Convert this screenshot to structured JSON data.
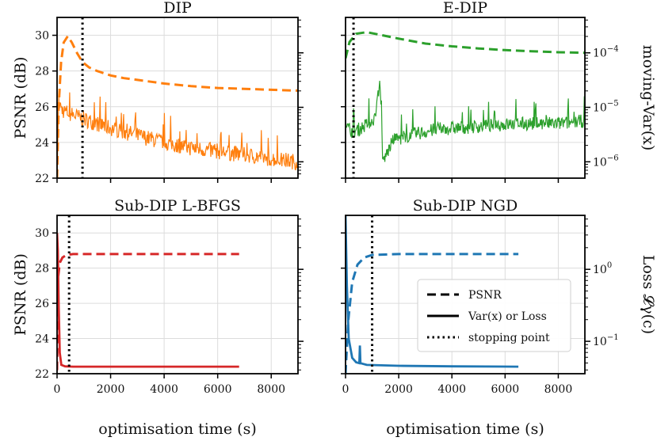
{
  "chart_data": [
    {
      "type": "line",
      "title": "DIP",
      "ylabel_left": "PSNR (dB)",
      "ylabel_right": "",
      "xlim": [
        0,
        9000
      ],
      "ylim_left": [
        22,
        31
      ],
      "yticks_left": [
        "22",
        "24",
        "26",
        "28",
        "30"
      ],
      "xticks": [],
      "yticks_right": [],
      "right_log_range": [
        -6.3,
        -3.35
      ],
      "stopping_point": 950,
      "series": [
        {
          "role": "psnr",
          "style": "dashed",
          "color": "#ff7f0e",
          "axis": "left",
          "points": [
            [
              0,
              22.0
            ],
            [
              60,
              26.0
            ],
            [
              150,
              28.5
            ],
            [
              250,
              29.6
            ],
            [
              400,
              29.95
            ],
            [
              550,
              29.6
            ],
            [
              750,
              29.0
            ],
            [
              950,
              28.5
            ],
            [
              1200,
              28.2
            ],
            [
              1500,
              28.0
            ],
            [
              2000,
              27.75
            ],
            [
              2500,
              27.6
            ],
            [
              3000,
              27.5
            ],
            [
              3500,
              27.4
            ],
            [
              4000,
              27.3
            ],
            [
              5000,
              27.15
            ],
            [
              6000,
              27.05
            ],
            [
              7000,
              27.0
            ],
            [
              8000,
              26.95
            ],
            [
              9000,
              26.9
            ]
          ]
        },
        {
          "role": "variance",
          "style": "solid",
          "color": "#ff7f0e",
          "axis": "left",
          "points": [
            [
              0,
              22.0
            ],
            [
              60,
              26.2
            ],
            [
              200,
              25.8
            ],
            [
              500,
              25.6
            ],
            [
              1000,
              25.3
            ],
            [
              2000,
              24.8
            ],
            [
              3000,
              24.4
            ],
            [
              4000,
              24.0
            ],
            [
              5000,
              23.7
            ],
            [
              6000,
              23.5
            ],
            [
              7000,
              23.3
            ],
            [
              8000,
              23.1
            ],
            [
              9000,
              22.9
            ]
          ],
          "noise": 0.9
        }
      ]
    },
    {
      "type": "line",
      "title": "E-DIP",
      "ylabel_left": "",
      "ylabel_right": "moving-Var(x)",
      "xlim": [
        0,
        9000
      ],
      "ylim_left": [
        22,
        31
      ],
      "yticks_left": [],
      "xticks": [],
      "yticks_right": [
        {
          "label": "10",
          "exp": "−4",
          "value": -4
        },
        {
          "label": "10",
          "exp": "−5",
          "value": -5
        },
        {
          "label": "10",
          "exp": "−6",
          "value": -6
        }
      ],
      "right_log_range": [
        -6.3,
        -3.35
      ],
      "stopping_point": 300,
      "series": [
        {
          "role": "psnr",
          "style": "dashed",
          "color": "#2ca02c",
          "axis": "right_log",
          "points": [
            [
              0,
              -4.1
            ],
            [
              150,
              -3.8
            ],
            [
              400,
              -3.65
            ],
            [
              800,
              -3.62
            ],
            [
              1200,
              -3.66
            ],
            [
              2000,
              -3.74
            ],
            [
              3000,
              -3.83
            ],
            [
              4000,
              -3.88
            ],
            [
              5000,
              -3.92
            ],
            [
              6000,
              -3.95
            ],
            [
              7000,
              -3.97
            ],
            [
              8000,
              -3.99
            ],
            [
              9000,
              -4.0
            ]
          ]
        },
        {
          "role": "variance",
          "style": "solid",
          "color": "#2ca02c",
          "axis": "right_log",
          "points": [
            [
              0,
              -5.35
            ],
            [
              300,
              -5.45
            ],
            [
              700,
              -5.35
            ],
            [
              1100,
              -5.2
            ],
            [
              1300,
              -4.5
            ],
            [
              1400,
              -6.0
            ],
            [
              1800,
              -5.6
            ],
            [
              2500,
              -5.5
            ],
            [
              3500,
              -5.4
            ],
            [
              5000,
              -5.35
            ],
            [
              6500,
              -5.3
            ],
            [
              8000,
              -5.3
            ],
            [
              9000,
              -5.25
            ]
          ],
          "noise": 0.25
        }
      ]
    },
    {
      "type": "line",
      "title": "Sub-DIP L-BFGS",
      "ylabel_left": "PSNR (dB)",
      "ylabel_right": "",
      "xlim": [
        0,
        9000
      ],
      "ylim_left": [
        22,
        31
      ],
      "yticks_left": [
        "22",
        "24",
        "26",
        "28",
        "30"
      ],
      "xticks": [
        "0",
        "2000",
        "4000",
        "6000",
        "8000"
      ],
      "yticks_right": [],
      "right_log_range": [
        -1.45,
        0.75
      ],
      "xlabel": "optimisation time (s)",
      "stopping_point": 450,
      "series": [
        {
          "role": "psnr",
          "style": "dashed",
          "color": "#d62728",
          "axis": "left",
          "points": [
            [
              0,
              22.2
            ],
            [
              40,
              27.5
            ],
            [
              100,
              28.3
            ],
            [
              200,
              28.6
            ],
            [
              350,
              28.75
            ],
            [
              600,
              28.8
            ],
            [
              1000,
              28.8
            ],
            [
              3000,
              28.8
            ],
            [
              5000,
              28.8
            ],
            [
              6800,
              28.8
            ]
          ]
        },
        {
          "role": "variance",
          "style": "solid",
          "color": "#d62728",
          "axis": "left",
          "points": [
            [
              0,
              30.0
            ],
            [
              30,
              29.0
            ],
            [
              60,
              26.0
            ],
            [
              100,
              23.2
            ],
            [
              160,
              22.5
            ],
            [
              300,
              22.42
            ],
            [
              600,
              22.4
            ],
            [
              3000,
              22.4
            ],
            [
              6800,
              22.4
            ]
          ]
        }
      ]
    },
    {
      "type": "line",
      "title": "Sub-DIP NGD",
      "ylabel_left": "",
      "ylabel_right": "Loss 𝓛γ(c)",
      "xlim": [
        0,
        9000
      ],
      "ylim_left": [
        22,
        31
      ],
      "yticks_left": [],
      "xticks": [
        "0",
        "2000",
        "4000",
        "6000",
        "8000"
      ],
      "yticks_right": [
        {
          "label": "10",
          "exp": "0",
          "value": 0
        },
        {
          "label": "10",
          "exp": "−1",
          "value": -1
        }
      ],
      "right_log_range": [
        -1.45,
        0.75
      ],
      "xlabel": "optimisation time (s)",
      "stopping_point": 1000,
      "series": [
        {
          "role": "psnr",
          "style": "dashed",
          "color": "#1f77b4",
          "axis": "left",
          "points": [
            [
              0,
              22.0
            ],
            [
              100,
              25.0
            ],
            [
              250,
              27.2
            ],
            [
              450,
              28.2
            ],
            [
              700,
              28.6
            ],
            [
              1000,
              28.75
            ],
            [
              2000,
              28.8
            ],
            [
              4000,
              28.8
            ],
            [
              6500,
              28.8
            ]
          ]
        },
        {
          "role": "variance",
          "style": "solid",
          "color": "#1f77b4",
          "axis": "left",
          "points": [
            [
              0,
              31.0
            ],
            [
              50,
              27.0
            ],
            [
              120,
              24.0
            ],
            [
              250,
              22.9
            ],
            [
              400,
              22.65
            ],
            [
              520,
              22.6
            ],
            [
              540,
              23.6
            ],
            [
              560,
              22.6
            ],
            [
              800,
              22.5
            ],
            [
              2000,
              22.45
            ],
            [
              4000,
              22.42
            ],
            [
              6500,
              22.4
            ]
          ]
        }
      ]
    }
  ],
  "legend": {
    "placement": "center-right of bottom-right panel",
    "entries": [
      {
        "label": "PSNR",
        "style": "dashed"
      },
      {
        "label": "Var(x) or Loss",
        "style": "solid"
      },
      {
        "label": "stopping point",
        "style": "dotted"
      }
    ]
  }
}
